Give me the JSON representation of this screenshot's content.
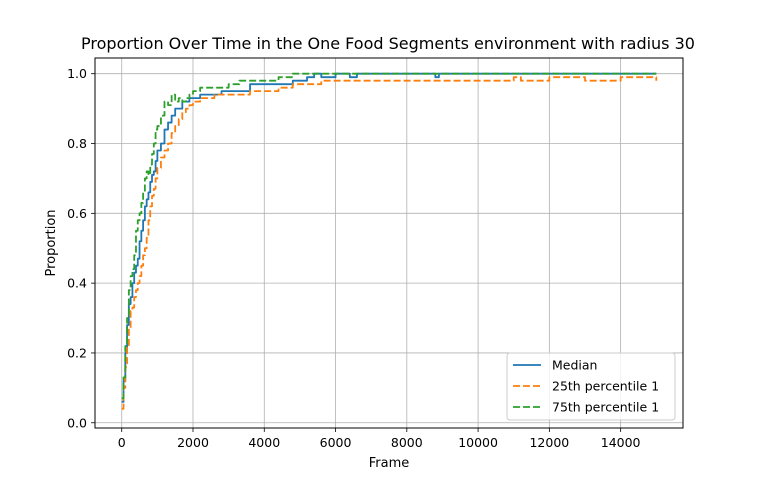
{
  "chart_data": {
    "type": "line",
    "title": "Proportion Over Time in the One Food Segments environment with radius 30",
    "xlabel": "Frame",
    "ylabel": "Proportion",
    "xlim": [
      -750,
      15750
    ],
    "ylim": [
      -0.015,
      1.045
    ],
    "xticks": [
      0,
      2000,
      4000,
      6000,
      8000,
      10000,
      12000,
      14000
    ],
    "yticks": [
      0.0,
      0.2,
      0.4,
      0.6,
      0.8,
      1.0
    ],
    "xtick_labels": [
      "0",
      "2000",
      "4000",
      "6000",
      "8000",
      "10000",
      "12000",
      "14000"
    ],
    "ytick_labels": [
      "0.0",
      "0.2",
      "0.4",
      "0.6",
      "0.8",
      "1.0"
    ],
    "grid": true,
    "legend_position": "lower-right",
    "series": [
      {
        "name": "Median",
        "color": "#1f77b4",
        "style": "solid",
        "x": [
          0,
          50,
          100,
          150,
          200,
          250,
          300,
          350,
          400,
          450,
          500,
          550,
          600,
          650,
          700,
          750,
          800,
          850,
          900,
          950,
          1000,
          1100,
          1200,
          1300,
          1400,
          1500,
          1600,
          1700,
          1800,
          1900,
          2000,
          2200,
          2400,
          2600,
          2800,
          3000,
          3300,
          3600,
          4000,
          4400,
          4800,
          5200,
          5400,
          5600,
          6000,
          6400,
          6600,
          7000,
          8000,
          8800,
          8900,
          9000,
          10000,
          11000,
          12000,
          13000,
          14000,
          15000
        ],
        "y": [
          0.06,
          0.12,
          0.2,
          0.28,
          0.34,
          0.36,
          0.4,
          0.43,
          0.45,
          0.47,
          0.52,
          0.55,
          0.58,
          0.62,
          0.64,
          0.66,
          0.69,
          0.71,
          0.72,
          0.75,
          0.78,
          0.8,
          0.84,
          0.86,
          0.88,
          0.9,
          0.9,
          0.92,
          0.92,
          0.93,
          0.93,
          0.94,
          0.94,
          0.94,
          0.95,
          0.95,
          0.95,
          0.97,
          0.97,
          0.97,
          0.98,
          0.99,
          1.0,
          0.99,
          1.0,
          0.99,
          1.0,
          1.0,
          1.0,
          0.99,
          1.0,
          1.0,
          1.0,
          1.0,
          1.0,
          1.0,
          1.0,
          1.0
        ]
      },
      {
        "name": "25th percentile 1",
        "color": "#ff7f0e",
        "style": "dashed",
        "x": [
          0,
          50,
          100,
          150,
          200,
          250,
          300,
          350,
          400,
          450,
          500,
          550,
          600,
          650,
          700,
          750,
          800,
          850,
          900,
          950,
          1000,
          1100,
          1200,
          1300,
          1400,
          1500,
          1600,
          1700,
          1800,
          1900,
          2000,
          2200,
          2400,
          2600,
          2800,
          3000,
          3300,
          3600,
          4000,
          4400,
          4800,
          5200,
          5600,
          6000,
          6400,
          7000,
          8000,
          9000,
          10000,
          11000,
          11200,
          12000,
          13000,
          14000,
          15000
        ],
        "y": [
          0.04,
          0.1,
          0.16,
          0.22,
          0.27,
          0.32,
          0.33,
          0.36,
          0.38,
          0.4,
          0.42,
          0.45,
          0.48,
          0.5,
          0.53,
          0.58,
          0.62,
          0.65,
          0.67,
          0.7,
          0.73,
          0.76,
          0.78,
          0.8,
          0.83,
          0.85,
          0.87,
          0.89,
          0.9,
          0.91,
          0.92,
          0.93,
          0.93,
          0.94,
          0.94,
          0.94,
          0.94,
          0.95,
          0.95,
          0.96,
          0.97,
          0.97,
          0.98,
          0.98,
          0.98,
          0.98,
          0.98,
          0.98,
          0.98,
          0.99,
          0.98,
          0.99,
          0.98,
          0.99,
          0.98
        ]
      },
      {
        "name": "75th percentile 1",
        "color": "#2ca02c",
        "style": "dashed",
        "x": [
          0,
          50,
          100,
          150,
          200,
          250,
          300,
          350,
          400,
          450,
          500,
          550,
          600,
          650,
          700,
          750,
          800,
          850,
          900,
          950,
          1000,
          1100,
          1200,
          1300,
          1400,
          1500,
          1600,
          1700,
          1800,
          1900,
          2000,
          2200,
          2400,
          2600,
          2800,
          3000,
          3300,
          3600,
          4000,
          4400,
          4800,
          5200,
          5600,
          6000,
          7000,
          8000,
          9000,
          10000,
          11000,
          12000,
          13000,
          14000,
          15000
        ],
        "y": [
          0.07,
          0.13,
          0.22,
          0.3,
          0.38,
          0.42,
          0.44,
          0.48,
          0.55,
          0.58,
          0.6,
          0.63,
          0.66,
          0.7,
          0.72,
          0.71,
          0.74,
          0.77,
          0.8,
          0.84,
          0.85,
          0.88,
          0.92,
          0.91,
          0.94,
          0.92,
          0.93,
          0.92,
          0.93,
          0.94,
          0.95,
          0.96,
          0.96,
          0.96,
          0.96,
          0.97,
          0.98,
          0.98,
          0.98,
          0.99,
          1.0,
          1.0,
          1.0,
          1.0,
          1.0,
          1.0,
          1.0,
          1.0,
          1.0,
          1.0,
          1.0,
          1.0,
          1.0
        ]
      }
    ]
  }
}
